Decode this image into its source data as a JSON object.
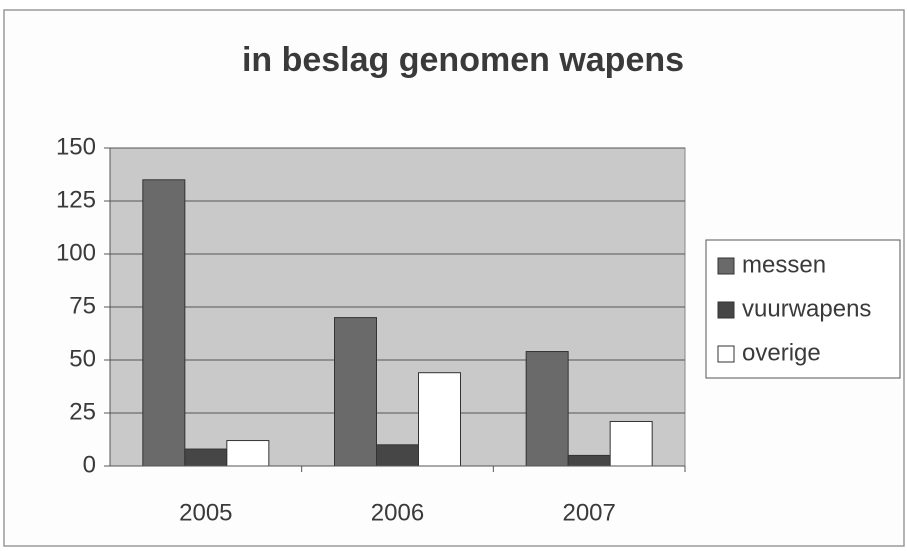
{
  "chart_data": {
    "type": "bar",
    "title": "in beslag genomen wapens",
    "categories": [
      "2005",
      "2006",
      "2007"
    ],
    "series": [
      {
        "name": "messen",
        "color": "#6a6a6a",
        "values": [
          135,
          70,
          54
        ]
      },
      {
        "name": "vuurwapens",
        "color": "#464646",
        "values": [
          8,
          10,
          5
        ]
      },
      {
        "name": "overige",
        "color": "#ffffff",
        "values": [
          12,
          44,
          21
        ]
      }
    ],
    "ylim": [
      0,
      150
    ],
    "yticks": [
      0,
      25,
      50,
      75,
      100,
      125,
      150
    ],
    "grid": true,
    "legend": "right"
  }
}
